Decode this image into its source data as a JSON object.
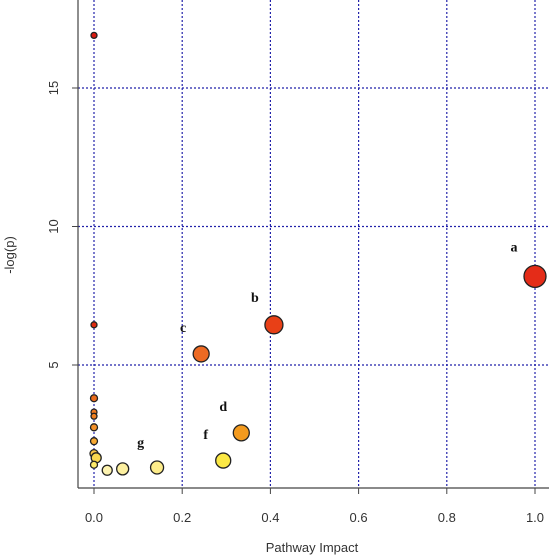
{
  "chart_data": {
    "type": "scatter",
    "title": "",
    "xlabel": "Pathway Impact",
    "ylabel": "-log(p)",
    "xlim": [
      -0.03,
      1.03
    ],
    "ylim": [
      0.5,
      17.5
    ],
    "xticks": [
      "0.0",
      "0.2",
      "0.4",
      "0.6",
      "0.8",
      "1.0"
    ],
    "yticks": [
      "5",
      "10",
      "15"
    ],
    "grid": true,
    "grid_color": "#2222aa",
    "points": [
      {
        "x": 0.0,
        "y": 16.9,
        "r": 3,
        "color": "#d81b10"
      },
      {
        "x": 0.0,
        "y": 6.45,
        "r": 3,
        "color": "#de2a12"
      },
      {
        "x": 0.0,
        "y": 3.8,
        "r": 3.5,
        "color": "#ea6b1c"
      },
      {
        "x": 0.0,
        "y": 3.3,
        "r": 3,
        "color": "#f07a20"
      },
      {
        "x": 0.0,
        "y": 3.15,
        "r": 3,
        "color": "#f08020"
      },
      {
        "x": 0.0,
        "y": 2.75,
        "r": 3.5,
        "color": "#f3902a"
      },
      {
        "x": 0.0,
        "y": 2.25,
        "r": 3.5,
        "color": "#f6a833"
      },
      {
        "x": 0.0,
        "y": 1.8,
        "r": 4,
        "color": "#f9c444"
      },
      {
        "x": 0.005,
        "y": 1.65,
        "r": 5,
        "color": "#fbd850"
      },
      {
        "x": 0.0,
        "y": 1.4,
        "r": 3.5,
        "color": "#fce96a"
      },
      {
        "x": 0.03,
        "y": 1.2,
        "r": 5,
        "color": "#fdf3b0"
      },
      {
        "x": 0.065,
        "y": 1.25,
        "r": 6,
        "color": "#fdf0a0"
      },
      {
        "x": 0.143,
        "y": 1.3,
        "r": 6.5,
        "color": "#fdec8a",
        "label": "g"
      },
      {
        "x": 0.293,
        "y": 1.55,
        "r": 7.5,
        "color": "#fbe844",
        "label": "f"
      },
      {
        "x": 0.334,
        "y": 2.55,
        "r": 8,
        "color": "#f39a1e",
        "label": "d"
      },
      {
        "x": 0.243,
        "y": 5.4,
        "r": 8,
        "color": "#ed6a23",
        "label": "c"
      },
      {
        "x": 0.408,
        "y": 6.45,
        "r": 9,
        "color": "#e84017",
        "label": "b"
      },
      {
        "x": 1.0,
        "y": 8.2,
        "r": 11,
        "color": "#e42c18",
        "label": "a"
      }
    ]
  }
}
